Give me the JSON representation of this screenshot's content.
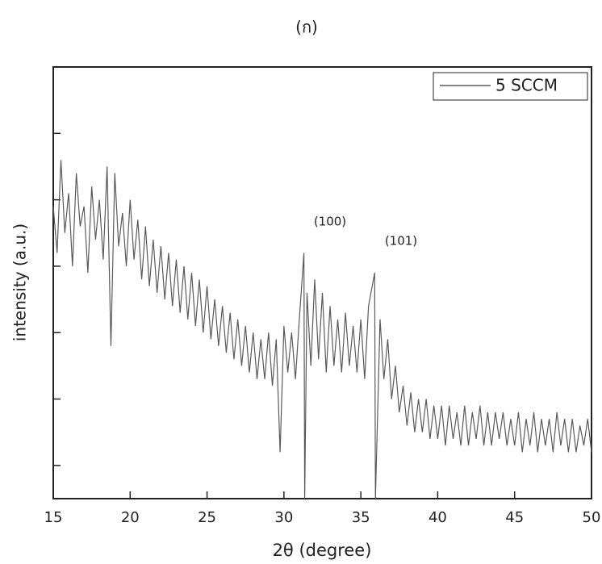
{
  "chart_data": {
    "type": "line",
    "title": "(ก)",
    "xlabel": "2θ (degree)",
    "ylabel": "intensity (a.u.)",
    "xlim": [
      15,
      50
    ],
    "xticks": [
      15,
      20,
      25,
      30,
      35,
      40,
      45,
      50
    ],
    "ylim": [
      -0.5,
      6
    ],
    "yticks": [
      0,
      1,
      2,
      3,
      4,
      5
    ],
    "legend": "upper right",
    "annotations": [
      "(100)",
      "(101)"
    ],
    "x": [
      15.0,
      15.25,
      15.5,
      15.75,
      16.0,
      16.25,
      16.5,
      16.75,
      17.0,
      17.25,
      17.5,
      17.75,
      18.0,
      18.25,
      18.5,
      18.75,
      19.0,
      19.25,
      19.5,
      19.75,
      20.0,
      20.25,
      20.5,
      20.75,
      21.0,
      21.25,
      21.5,
      21.75,
      22.0,
      22.25,
      22.5,
      22.75,
      23.0,
      23.25,
      23.5,
      23.75,
      24.0,
      24.25,
      24.5,
      24.75,
      25.0,
      25.25,
      25.5,
      25.75,
      26.0,
      26.25,
      26.5,
      26.75,
      27.0,
      27.25,
      27.5,
      27.75,
      28.0,
      28.25,
      28.5,
      28.75,
      29.0,
      29.25,
      29.5,
      29.75,
      30.0,
      30.25,
      30.5,
      30.75,
      31.0,
      31.3,
      31.35,
      31.5,
      31.75,
      32.0,
      32.25,
      32.5,
      32.75,
      33.0,
      33.25,
      33.5,
      33.75,
      34.0,
      34.25,
      34.5,
      34.75,
      35.0,
      35.25,
      35.5,
      35.9,
      35.95,
      36.25,
      36.5,
      36.75,
      37.0,
      37.25,
      37.5,
      37.75,
      38.0,
      38.25,
      38.5,
      38.75,
      39.0,
      39.25,
      39.5,
      39.75,
      40.0,
      40.25,
      40.5,
      40.75,
      41.0,
      41.25,
      41.5,
      41.75,
      42.0,
      42.25,
      42.5,
      42.75,
      43.0,
      43.25,
      43.5,
      43.75,
      44.0,
      44.25,
      44.5,
      44.75,
      45.0,
      45.25,
      45.5,
      45.75,
      46.0,
      46.25,
      46.5,
      46.75,
      47.0,
      47.25,
      47.5,
      47.75,
      48.0,
      48.25,
      48.5,
      48.75,
      49.0,
      49.25,
      49.5,
      49.75,
      50.0
    ],
    "series": [
      {
        "name": "5 SCCM",
        "color": "#5a5a5a",
        "values": [
          3.9,
          3.2,
          4.6,
          3.5,
          4.1,
          3.0,
          4.4,
          3.6,
          3.9,
          2.9,
          4.2,
          3.4,
          4.0,
          3.1,
          4.5,
          1.8,
          4.4,
          3.3,
          3.8,
          3.0,
          4.0,
          3.1,
          3.7,
          2.8,
          3.6,
          2.7,
          3.4,
          2.6,
          3.3,
          2.5,
          3.2,
          2.4,
          3.1,
          2.3,
          3.0,
          2.2,
          2.9,
          2.1,
          2.8,
          2.0,
          2.7,
          1.9,
          2.5,
          1.8,
          2.4,
          1.7,
          2.3,
          1.6,
          2.2,
          1.5,
          2.1,
          1.4,
          2.0,
          1.3,
          1.9,
          1.3,
          2.0,
          1.2,
          1.9,
          0.2,
          2.1,
          1.4,
          2.0,
          1.3,
          2.2,
          3.2,
          -0.5,
          2.6,
          1.5,
          2.8,
          1.6,
          2.6,
          1.4,
          2.4,
          1.5,
          2.2,
          1.4,
          2.3,
          1.5,
          2.1,
          1.4,
          2.2,
          1.3,
          2.4,
          2.9,
          -0.5,
          2.2,
          1.3,
          1.9,
          1.0,
          1.5,
          0.8,
          1.2,
          0.6,
          1.1,
          0.5,
          1.0,
          0.5,
          1.0,
          0.4,
          0.9,
          0.4,
          0.9,
          0.3,
          0.9,
          0.4,
          0.8,
          0.3,
          0.9,
          0.3,
          0.8,
          0.4,
          0.9,
          0.3,
          0.8,
          0.3,
          0.8,
          0.4,
          0.8,
          0.3,
          0.7,
          0.3,
          0.8,
          0.2,
          0.7,
          0.3,
          0.8,
          0.2,
          0.7,
          0.3,
          0.7,
          0.2,
          0.8,
          0.3,
          0.7,
          0.2,
          0.7,
          0.2,
          0.6,
          0.3,
          0.7,
          0.2
        ]
      }
    ]
  }
}
